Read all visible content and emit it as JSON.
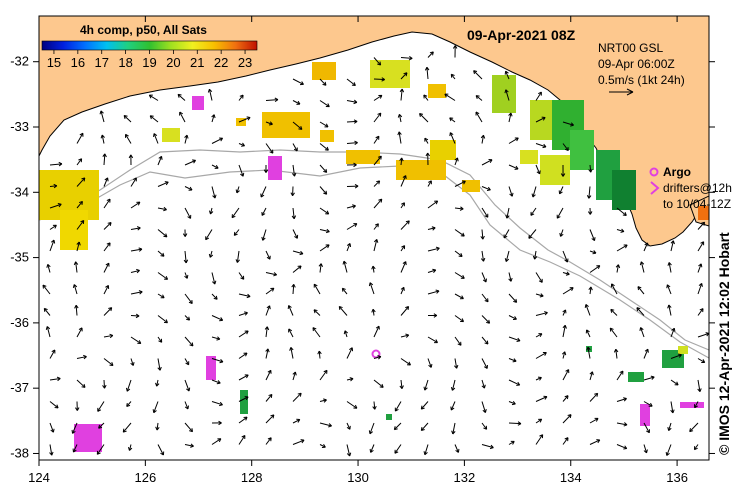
{
  "title": "09-Apr-2021 08Z",
  "colorbar": {
    "title": "4h comp, p50, All Sats",
    "ticks": [
      "15",
      "16",
      "17",
      "18",
      "19",
      "20",
      "21",
      "22",
      "23"
    ],
    "min": 14.5,
    "max": 23.5
  },
  "current_info": {
    "line1": "NRT00 GSL",
    "line2": "09-Apr 06:00Z",
    "line3": "0.5m/s (1kt 24h)"
  },
  "argo": {
    "label": "Argo",
    "line1": "drifters@12h",
    "line2": "to 10/04-12Z"
  },
  "credit": "© IMOS 12-Apr-2021 12:02 Hobart",
  "axes": {
    "x_ticks": [
      "124",
      "126",
      "128",
      "130",
      "132",
      "134",
      "136"
    ],
    "y_ticks": [
      "-32",
      "-33",
      "-34",
      "-35",
      "-36",
      "-37",
      "-38"
    ],
    "lon_range": [
      124,
      136.6
    ],
    "lat_range": [
      -31.3,
      -38.1
    ]
  },
  "colors": {
    "land": "#fdc88e",
    "ocean": "#ffffff",
    "argo": "#e040e0",
    "arrow": "#000000",
    "depth_contour": "#a8a8a8"
  }
}
